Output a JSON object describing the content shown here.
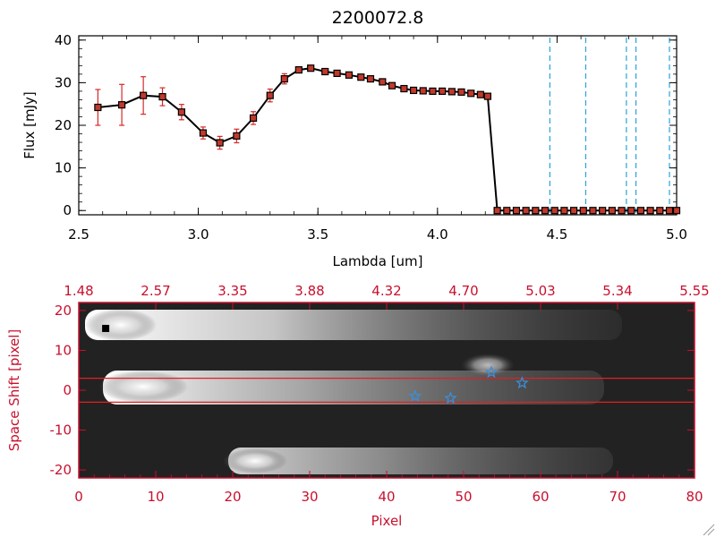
{
  "chart_data": [
    {
      "type": "line",
      "title": "2200072.8",
      "xlabel": "Lambda [um]",
      "ylabel": "Flux [mJy]",
      "xlim": [
        2.5,
        5.0
      ],
      "ylim": [
        -1,
        41
      ],
      "xticks": [
        "2.5",
        "3.0",
        "3.5",
        "4.0",
        "4.5",
        "5.0"
      ],
      "yticks": [
        "0",
        "10",
        "20",
        "30",
        "40"
      ],
      "grid": false,
      "colors": {
        "line": "#000000",
        "marker": "#c0392b",
        "errorbar": "#d62828",
        "vline": "#29a3d9"
      },
      "x": [
        2.58,
        2.68,
        2.77,
        2.85,
        2.93,
        3.02,
        3.09,
        3.16,
        3.23,
        3.3,
        3.36,
        3.42,
        3.47,
        3.53,
        3.58,
        3.63,
        3.68,
        3.72,
        3.77,
        3.81,
        3.86,
        3.9,
        3.94,
        3.98,
        4.02,
        4.06,
        4.1,
        4.14,
        4.18,
        4.21,
        4.25,
        4.29,
        4.33,
        4.37,
        4.41,
        4.45,
        4.49,
        4.53,
        4.57,
        4.61,
        4.65,
        4.69,
        4.73,
        4.77,
        4.81,
        4.85,
        4.89,
        4.93,
        4.97,
        5.0
      ],
      "y": [
        24.2,
        24.8,
        27.0,
        26.7,
        23.1,
        18.2,
        15.9,
        17.5,
        21.7,
        27.0,
        30.9,
        33.0,
        33.4,
        32.6,
        32.2,
        31.8,
        31.3,
        30.9,
        30.2,
        29.3,
        28.6,
        28.2,
        28.1,
        28.0,
        28.0,
        27.9,
        27.8,
        27.5,
        27.2,
        26.8,
        0,
        0,
        0,
        0,
        0,
        0,
        0,
        0,
        0,
        0,
        0,
        0,
        0,
        0,
        0,
        0,
        0,
        0,
        0,
        0
      ],
      "yerr": [
        4.2,
        4.8,
        4.4,
        2.1,
        1.8,
        1.4,
        1.5,
        1.6,
        1.5,
        1.5,
        1.2,
        0.6,
        0.5,
        0.4,
        0.4,
        0.4,
        0.4,
        0.4,
        0.4,
        0.4,
        0.4,
        0.4,
        0.4,
        0.4,
        0.4,
        0.4,
        0.4,
        0.4,
        0.4,
        0.4,
        0,
        0,
        0,
        0,
        0,
        0,
        0,
        0,
        0,
        0,
        0,
        0,
        0,
        0,
        0,
        0,
        0,
        0,
        0,
        0
      ],
      "vlines": [
        4.47,
        4.62,
        4.79,
        4.83,
        4.97
      ]
    },
    {
      "type": "heatmap",
      "xlabel": "Pixel",
      "ylabel": "Space Shift [pixel]",
      "xlim": [
        0,
        80
      ],
      "ylim": [
        -22,
        22
      ],
      "xticks": [
        "0",
        "10",
        "20",
        "30",
        "40",
        "50",
        "60",
        "70",
        "80"
      ],
      "yticks": [
        "-20",
        "-10",
        "0",
        "10",
        "20"
      ],
      "top_ticks": [
        "1.48",
        "2.57",
        "3.35",
        "3.88",
        "4.32",
        "4.70",
        "5.03",
        "5.34",
        "5.55"
      ],
      "colors": {
        "axis": "#c8102e",
        "hline": "#e02020",
        "star": "#3a8fd8",
        "marker": "#000000"
      },
      "hlines": [
        3,
        -3
      ],
      "stars": [
        {
          "x": 43.7,
          "y": -1.5
        },
        {
          "x": 48.3,
          "y": -2.0
        },
        {
          "x": 53.6,
          "y": 4.5
        },
        {
          "x": 57.6,
          "y": 1.8
        }
      ],
      "marker": {
        "x": 3.5,
        "y": 15.5
      }
    }
  ]
}
